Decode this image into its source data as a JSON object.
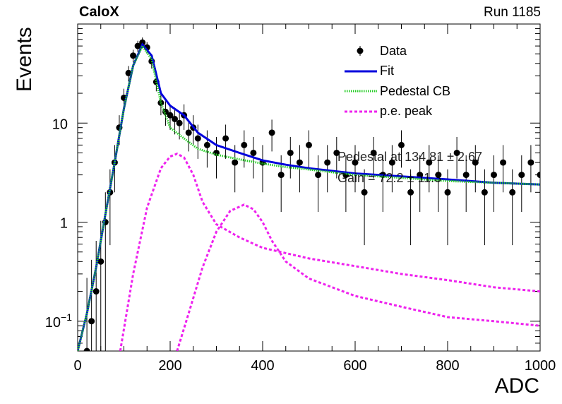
{
  "header": {
    "experiment": "CaloX",
    "run": "Run 1185"
  },
  "chart_data": {
    "type": "scatter",
    "xlabel": "ADC",
    "ylabel": "Events",
    "xlim": [
      0,
      1000
    ],
    "ylim": [
      0.05,
      100
    ],
    "yscale": "log",
    "xticks": [
      "0",
      "200",
      "400",
      "600",
      "800",
      "1000"
    ],
    "yticks": [
      "10",
      "1",
      "10^-1"
    ],
    "legend_position": "top-right",
    "legend": [
      {
        "label": "Data",
        "style": "marker",
        "color": "#000000"
      },
      {
        "label": "Fit",
        "style": "solid",
        "color": "#0000dd"
      },
      {
        "label": "Pedestal CB",
        "style": "dotted",
        "color": "#22cc22"
      },
      {
        "label": "p.e. peak",
        "style": "dashed",
        "color": "#ee22ee"
      }
    ],
    "fit_annotations": [
      "Pedestal at 134.81 ± 2.67",
      "Gain = 72.2 ± 11.3"
    ],
    "data_points": {
      "x": [
        20,
        30,
        40,
        50,
        60,
        70,
        80,
        90,
        100,
        110,
        120,
        130,
        140,
        150,
        160,
        170,
        180,
        190,
        200,
        210,
        220,
        230,
        240,
        250,
        260,
        280,
        300,
        320,
        340,
        360,
        380,
        400,
        420,
        440,
        460,
        480,
        500,
        520,
        540,
        560,
        580,
        600,
        620,
        640,
        660,
        680,
        700,
        720,
        740,
        760,
        780,
        800,
        820,
        840,
        860,
        880,
        900,
        920,
        940,
        960,
        980,
        1000
      ],
      "y": [
        0.05,
        0.1,
        0.2,
        0.4,
        1.0,
        2.0,
        4.0,
        9.0,
        18.0,
        32.0,
        48.0,
        60.0,
        65.0,
        58.0,
        42.0,
        26.0,
        16.0,
        13.0,
        12.0,
        11.0,
        10.0,
        12.0,
        8.0,
        9.0,
        7.0,
        6.0,
        5.0,
        7.0,
        4.0,
        6.0,
        5.0,
        4.0,
        8.0,
        3.0,
        5.0,
        4.0,
        6.0,
        3.0,
        4.0,
        5.0,
        3.0,
        4.0,
        2.0,
        5.0,
        3.0,
        4.0,
        6.0,
        2.0,
        3.0,
        4.0,
        3.0,
        2.0,
        5.0,
        3.0,
        4.0,
        2.0,
        3.0,
        4.0,
        2.0,
        3.0,
        4.0,
        3.0
      ]
    },
    "series": [
      {
        "name": "Fit",
        "x": [
          0,
          20,
          40,
          60,
          80,
          100,
          120,
          140,
          160,
          180,
          200,
          230,
          260,
          300,
          350,
          400,
          450,
          500,
          600,
          700,
          800,
          900,
          1000
        ],
        "y": [
          0.05,
          0.12,
          0.35,
          1.2,
          4.0,
          14.0,
          38.0,
          62.0,
          48.0,
          20.0,
          15.0,
          12.0,
          8.0,
          6.0,
          5.0,
          4.2,
          3.8,
          3.5,
          3.1,
          2.9,
          2.7,
          2.5,
          2.4
        ]
      },
      {
        "name": "Pedestal CB",
        "x": [
          0,
          20,
          40,
          60,
          80,
          100,
          120,
          140,
          160,
          180,
          200,
          230,
          260,
          300,
          350,
          400,
          450,
          500,
          600,
          700,
          800,
          900,
          1000
        ],
        "y": [
          0.05,
          0.12,
          0.35,
          1.2,
          4.0,
          14.0,
          38.0,
          60.0,
          44.0,
          16.0,
          9.0,
          7.0,
          5.5,
          4.8,
          4.3,
          3.9,
          3.6,
          3.4,
          3.0,
          2.8,
          2.6,
          2.5,
          2.4
        ]
      },
      {
        "name": "p.e. peak",
        "x": [
          92,
          120,
          150,
          180,
          200,
          215,
          230,
          250,
          270,
          300,
          350,
          400,
          500,
          600,
          700,
          800,
          900,
          1000
        ],
        "y": [
          0.05,
          0.3,
          1.4,
          3.5,
          4.6,
          4.9,
          4.5,
          3.0,
          1.6,
          0.95,
          0.7,
          0.55,
          0.43,
          0.36,
          0.3,
          0.26,
          0.22,
          0.2
        ]
      },
      {
        "name": "p.e. peak",
        "x": [
          215,
          240,
          270,
          300,
          330,
          360,
          380,
          400,
          420,
          450,
          500,
          600,
          700,
          800,
          900,
          1000
        ],
        "y": [
          0.05,
          0.12,
          0.35,
          0.8,
          1.3,
          1.5,
          1.35,
          1.0,
          0.65,
          0.4,
          0.27,
          0.18,
          0.14,
          0.11,
          0.1,
          0.09
        ]
      }
    ]
  }
}
